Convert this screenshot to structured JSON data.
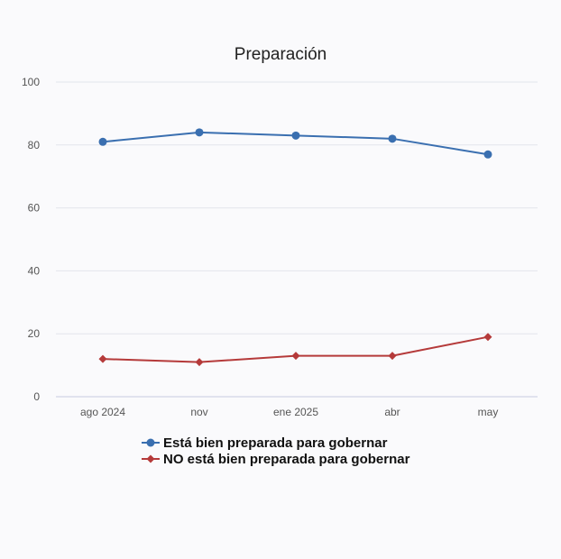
{
  "chart_data": {
    "type": "line",
    "title": "Preparación",
    "xlabel": "",
    "ylabel": "",
    "categories": [
      "ago 2024",
      "nov",
      "ene 2025",
      "abr",
      "may"
    ],
    "ylim": [
      0,
      100
    ],
    "yticks": [
      "0",
      "20",
      "40",
      "60",
      "80",
      "100"
    ],
    "grid": true,
    "legend_position": "bottom-center",
    "series": [
      {
        "name": "Está bien preparada para gobernar",
        "values": [
          81,
          84,
          83,
          82,
          77
        ],
        "color": "#3a6fb0",
        "marker": "circle"
      },
      {
        "name": "NO está bien preparada para gobernar",
        "values": [
          12,
          11,
          13,
          13,
          19
        ],
        "color": "#b53a3a",
        "marker": "diamond"
      }
    ]
  }
}
